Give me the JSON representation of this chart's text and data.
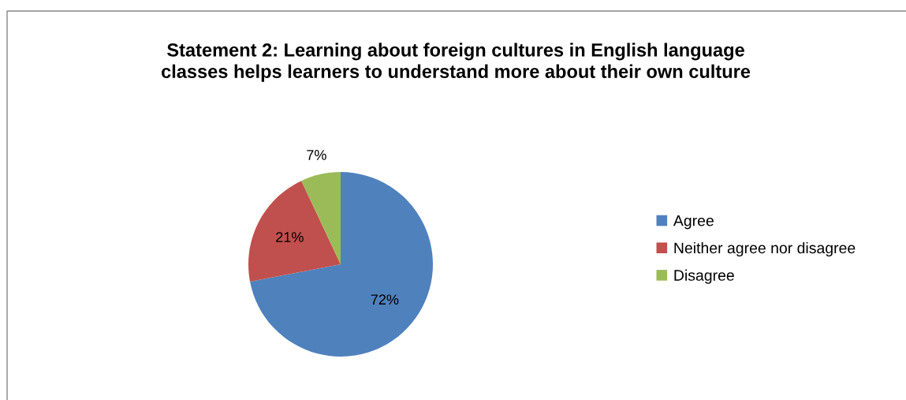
{
  "chart_data": {
    "type": "pie",
    "title": "Statement 2: Learning about foreign cultures in English language\nclasses helps learners to understand more about their own culture",
    "categories": [
      "Agree",
      "Neither agree nor disagree",
      "Disagree"
    ],
    "values": [
      72,
      21,
      7
    ],
    "colors": [
      "#4f81bd",
      "#c0504d",
      "#9bbb59"
    ],
    "value_labels": [
      "72%",
      "21%",
      "7%"
    ],
    "legend": "right"
  }
}
